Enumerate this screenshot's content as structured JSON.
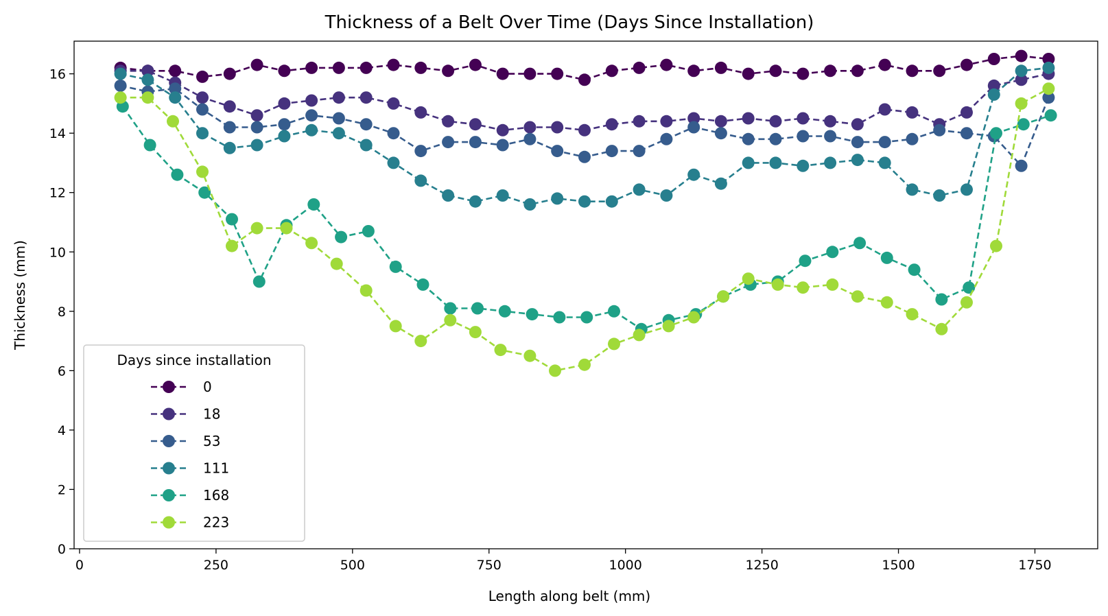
{
  "chart_data": {
    "type": "line",
    "title": "Thickness of a Belt Over Time (Days Since Installation)",
    "xlabel": "Length along belt (mm)",
    "ylabel": "Thickness (mm)",
    "xlim": [
      -10,
      1865
    ],
    "ylim": [
      0,
      17.1
    ],
    "xticks": [
      0,
      250,
      500,
      750,
      1000,
      1250,
      1500,
      1750
    ],
    "yticks": [
      0,
      2,
      4,
      6,
      8,
      10,
      12,
      14,
      16
    ],
    "grid": false,
    "legend": {
      "title": "Days since installation",
      "placement": "lower-left"
    },
    "series": [
      {
        "name": "0",
        "color": "#440154",
        "x": [
          75,
          125,
          175,
          225,
          275,
          325,
          375,
          425,
          475,
          525,
          575,
          625,
          675,
          725,
          775,
          825,
          875,
          925,
          975,
          1025,
          1075,
          1125,
          1175,
          1225,
          1275,
          1325,
          1375,
          1425,
          1475,
          1525,
          1575,
          1625,
          1675,
          1725,
          1775
        ],
        "y": [
          16.2,
          16.1,
          16.1,
          15.9,
          16.0,
          16.3,
          16.1,
          16.2,
          16.2,
          16.2,
          16.3,
          16.2,
          16.1,
          16.3,
          16.0,
          16.0,
          16.0,
          15.8,
          16.1,
          16.2,
          16.3,
          16.1,
          16.2,
          16.0,
          16.1,
          16.0,
          16.1,
          16.1,
          16.3,
          16.1,
          16.1,
          16.3,
          16.5,
          16.6,
          16.5
        ]
      },
      {
        "name": "18",
        "color": "#46327e",
        "x": [
          75,
          125,
          175,
          225,
          275,
          325,
          375,
          425,
          475,
          525,
          575,
          625,
          675,
          725,
          775,
          825,
          875,
          925,
          975,
          1025,
          1075,
          1125,
          1175,
          1225,
          1275,
          1325,
          1375,
          1425,
          1475,
          1525,
          1575,
          1625,
          1675,
          1725,
          1775
        ],
        "y": [
          16.1,
          16.1,
          15.7,
          15.2,
          14.9,
          14.6,
          15.0,
          15.1,
          15.2,
          15.2,
          15.0,
          14.7,
          14.4,
          14.3,
          14.1,
          14.2,
          14.2,
          14.1,
          14.3,
          14.4,
          14.4,
          14.5,
          14.4,
          14.5,
          14.4,
          14.5,
          14.4,
          14.3,
          14.8,
          14.7,
          14.3,
          14.7,
          15.6,
          15.8,
          16.0
        ]
      },
      {
        "name": "53",
        "color": "#365c8d",
        "x": [
          75,
          125,
          175,
          225,
          275,
          325,
          375,
          425,
          475,
          525,
          575,
          625,
          675,
          725,
          775,
          825,
          875,
          925,
          975,
          1025,
          1075,
          1125,
          1175,
          1225,
          1275,
          1325,
          1375,
          1425,
          1475,
          1525,
          1575,
          1625,
          1675,
          1725,
          1775
        ],
        "y": [
          15.6,
          15.4,
          15.5,
          14.8,
          14.2,
          14.2,
          14.3,
          14.6,
          14.5,
          14.3,
          14.0,
          13.4,
          13.7,
          13.7,
          13.6,
          13.8,
          13.4,
          13.2,
          13.4,
          13.4,
          13.8,
          14.2,
          14.0,
          13.8,
          13.8,
          13.9,
          13.9,
          13.7,
          13.7,
          13.8,
          14.1,
          14.0,
          13.9,
          12.9,
          15.2
        ]
      },
      {
        "name": "111",
        "color": "#277f8e",
        "x": [
          75,
          125,
          175,
          225,
          275,
          325,
          375,
          425,
          475,
          525,
          575,
          625,
          675,
          725,
          775,
          825,
          875,
          925,
          975,
          1025,
          1075,
          1125,
          1175,
          1225,
          1275,
          1325,
          1375,
          1425,
          1475,
          1525,
          1575,
          1625,
          1675,
          1725,
          1775
        ],
        "y": [
          16.0,
          15.8,
          15.2,
          14.0,
          13.5,
          13.6,
          13.9,
          14.1,
          14.0,
          13.6,
          13.0,
          12.4,
          11.9,
          11.7,
          11.9,
          11.6,
          11.8,
          11.7,
          11.7,
          12.1,
          11.9,
          12.6,
          12.3,
          13.0,
          13.0,
          12.9,
          13.0,
          13.1,
          13.0,
          12.1,
          11.9,
          12.1,
          15.3,
          16.1,
          16.2
        ]
      },
      {
        "name": "168",
        "color": "#1fa187",
        "x": [
          79,
          129,
          179,
          229,
          279,
          329,
          379,
          429,
          479,
          529,
          579,
          629,
          679,
          729,
          779,
          829,
          879,
          929,
          979,
          1029,
          1079,
          1129,
          1179,
          1229,
          1279,
          1329,
          1379,
          1429,
          1479,
          1529,
          1579,
          1629,
          1679,
          1729,
          1779
        ],
        "y": [
          14.9,
          13.6,
          12.6,
          12.0,
          11.1,
          9.0,
          10.9,
          11.6,
          10.5,
          10.7,
          9.5,
          8.9,
          8.1,
          8.1,
          8.0,
          7.9,
          7.8,
          7.8,
          8.0,
          7.4,
          7.7,
          7.9,
          8.5,
          8.9,
          9.0,
          9.7,
          10.0,
          10.3,
          9.8,
          9.4,
          8.4,
          8.8,
          14.0,
          14.3,
          14.6
        ]
      },
      {
        "name": "223",
        "color": "#a0da39",
        "x": [
          75,
          125,
          171,
          225,
          279,
          325,
          379,
          425,
          471,
          525,
          579,
          625,
          679,
          725,
          771,
          825,
          871,
          925,
          979,
          1025,
          1079,
          1125,
          1179,
          1225,
          1279,
          1325,
          1379,
          1425,
          1479,
          1525,
          1579,
          1625,
          1679,
          1725,
          1775
        ],
        "y": [
          15.2,
          15.2,
          14.4,
          12.7,
          10.2,
          10.8,
          10.8,
          10.3,
          9.6,
          8.7,
          7.5,
          7.0,
          7.7,
          7.3,
          6.7,
          6.5,
          6.0,
          6.2,
          6.9,
          7.2,
          7.5,
          7.8,
          8.5,
          9.1,
          8.9,
          8.8,
          8.9,
          8.5,
          8.3,
          7.9,
          7.4,
          8.3,
          10.2,
          15.0,
          15.5
        ]
      }
    ]
  }
}
